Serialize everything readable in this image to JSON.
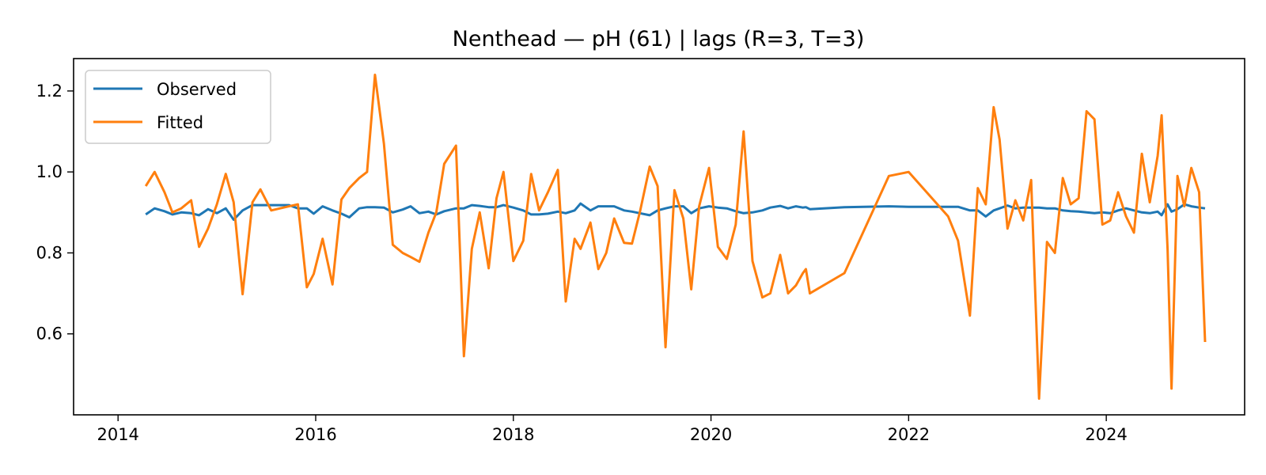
{
  "chart_data": {
    "type": "line",
    "title": "Nenthead — pH (61) | lags (R=3, T=3)",
    "xlabel": "",
    "ylabel": "",
    "xlim": [
      2013.55,
      2025.4
    ],
    "ylim": [
      0.4,
      1.28
    ],
    "x_ticks": [
      2014,
      2016,
      2018,
      2020,
      2022,
      2024
    ],
    "x_tick_labels": [
      "2014",
      "2016",
      "2018",
      "2020",
      "2022",
      "2024"
    ],
    "y_ticks": [
      0.6,
      0.8,
      1.0,
      1.2
    ],
    "y_tick_labels": [
      "0.6",
      "0.8",
      "1.0",
      "1.2"
    ],
    "grid": false,
    "legend": "upper-left",
    "series": [
      {
        "name": "Observed",
        "color": "#1f77b4",
        "points": [
          [
            2014.28,
            0.895
          ],
          [
            2014.37,
            0.91
          ],
          [
            2014.47,
            0.903
          ],
          [
            2014.55,
            0.895
          ],
          [
            2014.64,
            0.9
          ],
          [
            2014.74,
            0.898
          ],
          [
            2014.82,
            0.893
          ],
          [
            2014.91,
            0.908
          ],
          [
            2015.0,
            0.898
          ],
          [
            2015.09,
            0.91
          ],
          [
            2015.17,
            0.882
          ],
          [
            2015.26,
            0.905
          ],
          [
            2015.36,
            0.918
          ],
          [
            2015.44,
            0.918
          ],
          [
            2015.55,
            0.918
          ],
          [
            2015.64,
            0.918
          ],
          [
            2015.73,
            0.918
          ],
          [
            2015.82,
            0.91
          ],
          [
            2015.91,
            0.91
          ],
          [
            2015.98,
            0.897
          ],
          [
            2016.07,
            0.915
          ],
          [
            2016.17,
            0.905
          ],
          [
            2016.26,
            0.897
          ],
          [
            2016.34,
            0.888
          ],
          [
            2016.44,
            0.91
          ],
          [
            2016.52,
            0.913
          ],
          [
            2016.6,
            0.913
          ],
          [
            2016.69,
            0.912
          ],
          [
            2016.78,
            0.9
          ],
          [
            2016.88,
            0.907
          ],
          [
            2016.96,
            0.915
          ],
          [
            2017.05,
            0.898
          ],
          [
            2017.14,
            0.902
          ],
          [
            2017.22,
            0.895
          ],
          [
            2017.3,
            0.903
          ],
          [
            2017.42,
            0.91
          ],
          [
            2017.5,
            0.91
          ],
          [
            2017.58,
            0.918
          ],
          [
            2017.66,
            0.916
          ],
          [
            2017.75,
            0.913
          ],
          [
            2017.83,
            0.913
          ],
          [
            2017.9,
            0.918
          ],
          [
            2018.0,
            0.912
          ],
          [
            2018.1,
            0.905
          ],
          [
            2018.18,
            0.895
          ],
          [
            2018.26,
            0.895
          ],
          [
            2018.35,
            0.897
          ],
          [
            2018.45,
            0.902
          ],
          [
            2018.53,
            0.898
          ],
          [
            2018.62,
            0.905
          ],
          [
            2018.68,
            0.922
          ],
          [
            2018.78,
            0.905
          ],
          [
            2018.86,
            0.915
          ],
          [
            2018.94,
            0.915
          ],
          [
            2019.02,
            0.915
          ],
          [
            2019.12,
            0.905
          ],
          [
            2019.2,
            0.902
          ],
          [
            2019.28,
            0.898
          ],
          [
            2019.38,
            0.893
          ],
          [
            2019.46,
            0.905
          ],
          [
            2019.54,
            0.91
          ],
          [
            2019.63,
            0.915
          ],
          [
            2019.72,
            0.915
          ],
          [
            2019.8,
            0.898
          ],
          [
            2019.88,
            0.91
          ],
          [
            2019.98,
            0.915
          ],
          [
            2020.07,
            0.912
          ],
          [
            2020.16,
            0.91
          ],
          [
            2020.25,
            0.903
          ],
          [
            2020.33,
            0.898
          ],
          [
            2020.42,
            0.9
          ],
          [
            2020.52,
            0.905
          ],
          [
            2020.6,
            0.912
          ],
          [
            2020.7,
            0.916
          ],
          [
            2020.78,
            0.91
          ],
          [
            2020.86,
            0.915
          ],
          [
            2020.93,
            0.912
          ],
          [
            2020.96,
            0.913
          ],
          [
            2021.0,
            0.908
          ],
          [
            2021.35,
            0.913
          ],
          [
            2021.8,
            0.915
          ],
          [
            2022.0,
            0.914
          ],
          [
            2022.4,
            0.914
          ],
          [
            2022.5,
            0.914
          ],
          [
            2022.62,
            0.905
          ],
          [
            2022.7,
            0.905
          ],
          [
            2022.78,
            0.89
          ],
          [
            2022.86,
            0.905
          ],
          [
            2022.92,
            0.91
          ],
          [
            2023.0,
            0.917
          ],
          [
            2023.08,
            0.91
          ],
          [
            2023.16,
            0.912
          ],
          [
            2023.24,
            0.912
          ],
          [
            2023.32,
            0.912
          ],
          [
            2023.4,
            0.91
          ],
          [
            2023.48,
            0.91
          ],
          [
            2023.56,
            0.905
          ],
          [
            2023.64,
            0.903
          ],
          [
            2023.72,
            0.902
          ],
          [
            2023.8,
            0.9
          ],
          [
            2023.88,
            0.898
          ],
          [
            2023.96,
            0.9
          ],
          [
            2024.04,
            0.898
          ],
          [
            2024.12,
            0.905
          ],
          [
            2024.2,
            0.91
          ],
          [
            2024.28,
            0.905
          ],
          [
            2024.36,
            0.9
          ],
          [
            2024.44,
            0.898
          ],
          [
            2024.52,
            0.902
          ],
          [
            2024.56,
            0.893
          ],
          [
            2024.62,
            0.92
          ],
          [
            2024.66,
            0.902
          ],
          [
            2024.72,
            0.908
          ],
          [
            2024.79,
            0.92
          ],
          [
            2024.86,
            0.915
          ],
          [
            2024.94,
            0.912
          ],
          [
            2025.0,
            0.91
          ]
        ]
      },
      {
        "name": "Fitted",
        "color": "#ff7f0e",
        "points": [
          [
            2014.28,
            0.965
          ],
          [
            2014.37,
            1.0
          ],
          [
            2014.47,
            0.95
          ],
          [
            2014.55,
            0.9
          ],
          [
            2014.64,
            0.91
          ],
          [
            2014.74,
            0.93
          ],
          [
            2014.82,
            0.815
          ],
          [
            2014.91,
            0.86
          ],
          [
            2015.0,
            0.92
          ],
          [
            2015.09,
            0.995
          ],
          [
            2015.17,
            0.925
          ],
          [
            2015.26,
            0.698
          ],
          [
            2015.36,
            0.925
          ],
          [
            2015.44,
            0.957
          ],
          [
            2015.55,
            0.905
          ],
          [
            2015.64,
            0.91
          ],
          [
            2015.73,
            0.915
          ],
          [
            2015.82,
            0.92
          ],
          [
            2015.91,
            0.715
          ],
          [
            2015.98,
            0.748
          ],
          [
            2016.07,
            0.835
          ],
          [
            2016.17,
            0.722
          ],
          [
            2016.26,
            0.932
          ],
          [
            2016.34,
            0.96
          ],
          [
            2016.44,
            0.985
          ],
          [
            2016.52,
            1.0
          ],
          [
            2016.6,
            1.24
          ],
          [
            2016.69,
            1.07
          ],
          [
            2016.78,
            0.82
          ],
          [
            2016.88,
            0.8
          ],
          [
            2016.96,
            0.79
          ],
          [
            2017.05,
            0.778
          ],
          [
            2017.14,
            0.85
          ],
          [
            2017.22,
            0.9
          ],
          [
            2017.3,
            1.02
          ],
          [
            2017.42,
            1.065
          ],
          [
            2017.5,
            0.545
          ],
          [
            2017.58,
            0.81
          ],
          [
            2017.66,
            0.9
          ],
          [
            2017.75,
            0.762
          ],
          [
            2017.83,
            0.935
          ],
          [
            2017.9,
            1.0
          ],
          [
            2018.0,
            0.78
          ],
          [
            2018.1,
            0.83
          ],
          [
            2018.18,
            0.995
          ],
          [
            2018.26,
            0.905
          ],
          [
            2018.35,
            0.95
          ],
          [
            2018.45,
            1.005
          ],
          [
            2018.53,
            0.68
          ],
          [
            2018.62,
            0.835
          ],
          [
            2018.68,
            0.81
          ],
          [
            2018.78,
            0.875
          ],
          [
            2018.86,
            0.76
          ],
          [
            2018.94,
            0.8
          ],
          [
            2019.02,
            0.885
          ],
          [
            2019.12,
            0.825
          ],
          [
            2019.2,
            0.823
          ],
          [
            2019.28,
            0.9
          ],
          [
            2019.38,
            1.013
          ],
          [
            2019.46,
            0.965
          ],
          [
            2019.54,
            0.567
          ],
          [
            2019.63,
            0.955
          ],
          [
            2019.72,
            0.885
          ],
          [
            2019.8,
            0.71
          ],
          [
            2019.88,
            0.915
          ],
          [
            2019.98,
            1.01
          ],
          [
            2020.07,
            0.815
          ],
          [
            2020.16,
            0.785
          ],
          [
            2020.25,
            0.87
          ],
          [
            2020.33,
            1.1
          ],
          [
            2020.42,
            0.78
          ],
          [
            2020.52,
            0.69
          ],
          [
            2020.6,
            0.7
          ],
          [
            2020.7,
            0.795
          ],
          [
            2020.78,
            0.7
          ],
          [
            2020.86,
            0.72
          ],
          [
            2020.93,
            0.75
          ],
          [
            2020.96,
            0.76
          ],
          [
            2021.0,
            0.7
          ],
          [
            2021.35,
            0.75
          ],
          [
            2021.8,
            0.99
          ],
          [
            2022.0,
            1.0
          ],
          [
            2022.4,
            0.89
          ],
          [
            2022.5,
            0.83
          ],
          [
            2022.62,
            0.645
          ],
          [
            2022.7,
            0.96
          ],
          [
            2022.78,
            0.92
          ],
          [
            2022.86,
            1.16
          ],
          [
            2022.92,
            1.08
          ],
          [
            2023.0,
            0.86
          ],
          [
            2023.08,
            0.93
          ],
          [
            2023.16,
            0.88
          ],
          [
            2023.24,
            0.98
          ],
          [
            2023.32,
            0.44
          ],
          [
            2023.4,
            0.827
          ],
          [
            2023.48,
            0.8
          ],
          [
            2023.56,
            0.985
          ],
          [
            2023.64,
            0.92
          ],
          [
            2023.72,
            0.935
          ],
          [
            2023.8,
            1.15
          ],
          [
            2023.88,
            1.13
          ],
          [
            2023.96,
            0.87
          ],
          [
            2024.04,
            0.88
          ],
          [
            2024.12,
            0.95
          ],
          [
            2024.2,
            0.89
          ],
          [
            2024.28,
            0.85
          ],
          [
            2024.36,
            1.045
          ],
          [
            2024.44,
            0.925
          ],
          [
            2024.52,
            1.04
          ],
          [
            2024.56,
            1.14
          ],
          [
            2024.62,
            0.81
          ],
          [
            2024.66,
            0.465
          ],
          [
            2024.72,
            0.99
          ],
          [
            2024.79,
            0.915
          ],
          [
            2024.86,
            1.01
          ],
          [
            2024.94,
            0.95
          ],
          [
            2025.0,
            0.58
          ]
        ]
      }
    ]
  }
}
